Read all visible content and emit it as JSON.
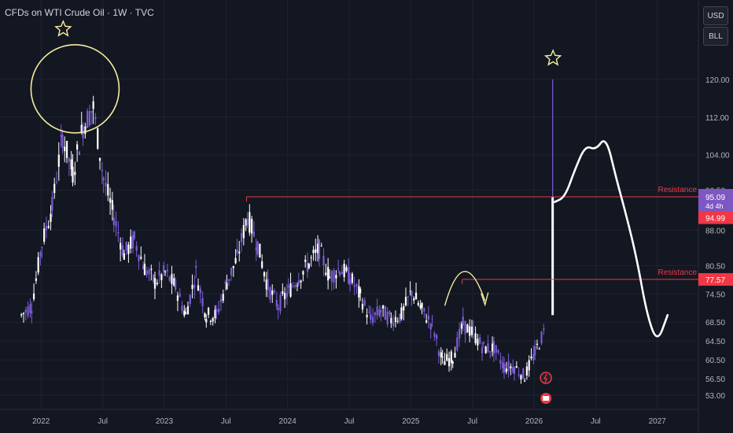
{
  "title": "CFDs on WTI Crude Oil · 1W · TVC",
  "buttons": {
    "currency": "USD",
    "unit": "BLL"
  },
  "colors": {
    "up": "#ffffff",
    "down": "#7b5bd6",
    "resistance": "#f23645",
    "annotation": "#f5eda0",
    "price_tag": "#7e57c2"
  },
  "icons": {
    "event_flash": "flash-icon",
    "event_flag": "flag-icon"
  },
  "chart_data": {
    "type": "candlestick",
    "title": "CFDs on WTI Crude Oil · 1W · TVC",
    "ylim": [
      50,
      131
    ],
    "y_ticks": [
      120.0,
      112.0,
      104.0,
      96.5,
      88.0,
      80.5,
      74.5,
      68.5,
      64.5,
      60.5,
      56.5,
      53.0
    ],
    "x_ticks": [
      {
        "label": "2022",
        "x": "2022-01"
      },
      {
        "label": "Jul",
        "x": "2022-07"
      },
      {
        "label": "2023",
        "x": "2023-01"
      },
      {
        "label": "Jul",
        "x": "2023-07"
      },
      {
        "label": "2024",
        "x": "2024-01"
      },
      {
        "label": "Jul",
        "x": "2024-07"
      },
      {
        "label": "2025",
        "x": "2025-01"
      },
      {
        "label": "Jul",
        "x": "2025-07"
      },
      {
        "label": "2026",
        "x": "2026-01"
      },
      {
        "label": "Jul",
        "x": "2026-07"
      },
      {
        "label": "2027",
        "x": "2027-01"
      }
    ],
    "price_trend": [
      [
        "2021-11",
        70
      ],
      [
        "2021-12",
        72
      ],
      [
        "2022-01",
        85
      ],
      [
        "2022-02",
        93
      ],
      [
        "2022-03",
        108
      ],
      [
        "2022-04",
        100
      ],
      [
        "2022-05",
        110
      ],
      [
        "2022-06",
        114
      ],
      [
        "2022-07",
        99
      ],
      [
        "2022-08",
        91
      ],
      [
        "2022-09",
        83
      ],
      [
        "2022-10",
        86
      ],
      [
        "2022-11",
        80
      ],
      [
        "2022-12",
        77
      ],
      [
        "2023-01",
        79
      ],
      [
        "2023-02",
        76
      ],
      [
        "2023-03",
        70
      ],
      [
        "2023-04",
        79
      ],
      [
        "2023-05",
        70
      ],
      [
        "2023-06",
        70
      ],
      [
        "2023-07",
        77
      ],
      [
        "2023-08",
        82
      ],
      [
        "2023-09",
        91
      ],
      [
        "2023-10",
        85
      ],
      [
        "2023-11",
        76
      ],
      [
        "2023-12",
        72
      ],
      [
        "2024-01",
        75
      ],
      [
        "2024-02",
        78
      ],
      [
        "2024-03",
        81
      ],
      [
        "2024-04",
        84
      ],
      [
        "2024-05",
        78
      ],
      [
        "2024-06",
        80
      ],
      [
        "2024-07",
        78
      ],
      [
        "2024-08",
        74
      ],
      [
        "2024-09",
        69
      ],
      [
        "2024-10",
        71
      ],
      [
        "2024-11",
        69
      ],
      [
        "2024-12",
        70
      ],
      [
        "2025-01",
        75
      ],
      [
        "2025-02",
        71
      ],
      [
        "2025-03",
        68
      ],
      [
        "2025-04",
        60
      ],
      [
        "2025-05",
        61
      ],
      [
        "2025-06",
        68
      ],
      [
        "2025-07",
        66
      ],
      [
        "2025-08",
        63
      ],
      [
        "2025-09",
        63
      ],
      [
        "2025-10",
        59
      ],
      [
        "2025-11",
        59
      ],
      [
        "2025-12",
        57
      ],
      [
        "2026-01",
        62
      ],
      [
        "2026-02",
        67
      ]
    ],
    "spike": {
      "open": 70,
      "close": 94.99,
      "high": 120,
      "low": 70
    },
    "resistances": [
      {
        "label": "Resistance",
        "value": 95.09
      },
      {
        "label": "Resistance",
        "value": 77.57
      }
    ],
    "price_labels": [
      {
        "value": "95.09",
        "sub": "4d 4h",
        "y": 95.09
      },
      {
        "value": "94.99",
        "y": 93.0
      },
      {
        "value": "77.57",
        "y": 77.57
      }
    ],
    "projection": [
      [
        "2026-03",
        94
      ],
      [
        "2026-04",
        95
      ],
      [
        "2026-05",
        101
      ],
      [
        "2026-06",
        106
      ],
      [
        "2026-07",
        105
      ],
      [
        "2026-08",
        108
      ],
      [
        "2026-09",
        99
      ],
      [
        "2026-10",
        91
      ],
      [
        "2026-11",
        82
      ],
      [
        "2026-12",
        70
      ],
      [
        "2027-01",
        64
      ],
      [
        "2027-02",
        70
      ]
    ]
  }
}
